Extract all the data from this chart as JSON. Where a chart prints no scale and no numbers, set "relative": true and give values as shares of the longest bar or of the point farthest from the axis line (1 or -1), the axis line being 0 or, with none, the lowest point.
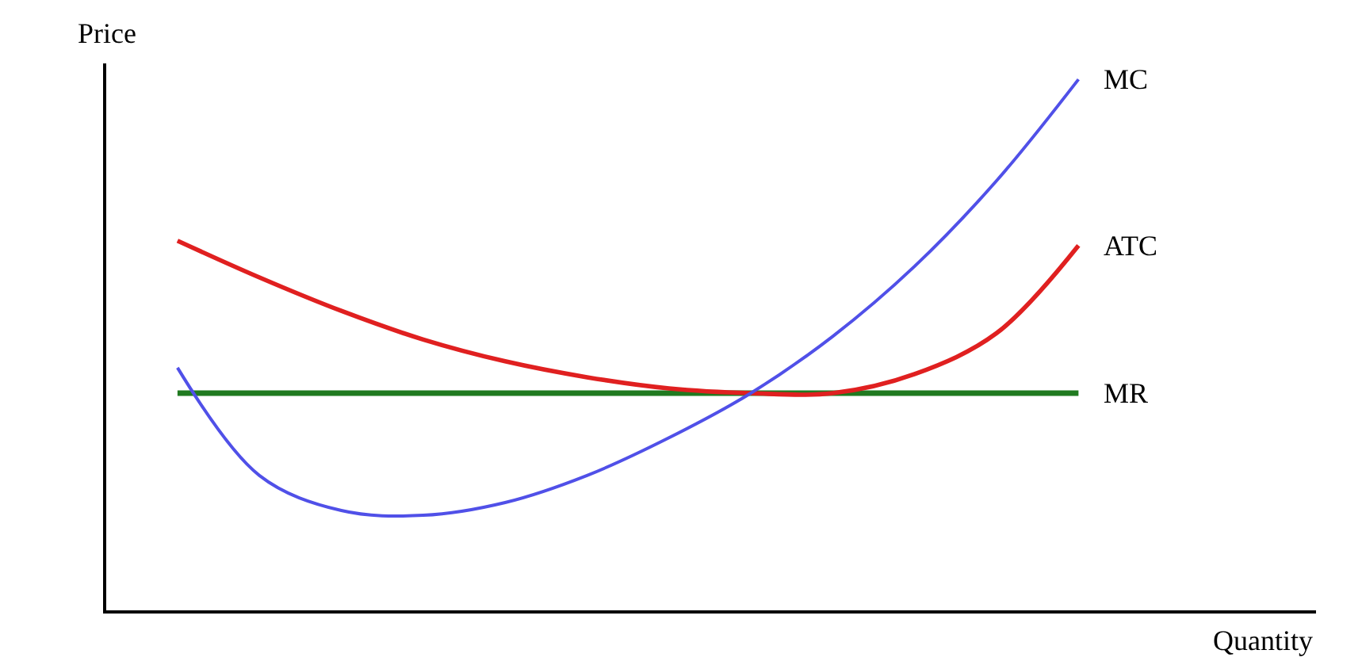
{
  "chart_data": {
    "type": "line",
    "relative": true,
    "xlabel": "Quantity",
    "ylabel": "Price",
    "categories": [
      null,
      null,
      null,
      null,
      null,
      null,
      null,
      null,
      null,
      null,
      null,
      null
    ],
    "series": [
      {
        "name": "MC",
        "color": "#5050e8",
        "values": [
          0.457,
          0.254,
          0.188,
          0.179,
          0.203,
          0.254,
          0.325,
          0.409,
          0.516,
          0.648,
          0.809,
          1
        ]
      },
      {
        "name": "ATC",
        "color": "#e02020",
        "values": [
          0.696,
          0.627,
          0.564,
          0.51,
          0.469,
          0.439,
          0.418,
          0.409,
          0.409,
          0.445,
          0.522,
          0.687
        ]
      },
      {
        "name": "MR",
        "color": "#207a20",
        "values": [
          0.409,
          0.409,
          0.409,
          0.409,
          0.409,
          0.409,
          0.409,
          0.409,
          0.409,
          0.409,
          0.409,
          0.409
        ]
      }
    ]
  }
}
